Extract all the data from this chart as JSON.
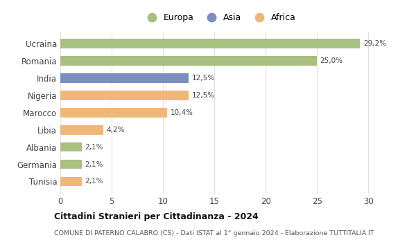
{
  "categories": [
    "Ucraina",
    "Romania",
    "India",
    "Nigeria",
    "Marocco",
    "Libia",
    "Albania",
    "Germania",
    "Tunisia"
  ],
  "values": [
    29.2,
    25.0,
    12.5,
    12.5,
    10.4,
    4.2,
    2.1,
    2.1,
    2.1
  ],
  "labels": [
    "29,2%",
    "25,0%",
    "12,5%",
    "12,5%",
    "10,4%",
    "4,2%",
    "2,1%",
    "2,1%",
    "2,1%"
  ],
  "continents": [
    "Europa",
    "Europa",
    "Asia",
    "Africa",
    "Africa",
    "Africa",
    "Europa",
    "Europa",
    "Africa"
  ],
  "colors": {
    "Europa": "#a8c080",
    "Asia": "#7a8fc0",
    "Africa": "#f0b878"
  },
  "xlim": [
    0,
    31
  ],
  "xticks": [
    0,
    5,
    10,
    15,
    20,
    25,
    30
  ],
  "title": "Cittadini Stranieri per Cittadinanza - 2024",
  "subtitle": "COMUNE DI PATERNO CALABRO (CS) - Dati ISTAT al 1° gennaio 2024 - Elaborazione TUTTITALIA.IT",
  "background_color": "#ffffff",
  "grid_color": "#e0e0e0",
  "bar_height": 0.55
}
